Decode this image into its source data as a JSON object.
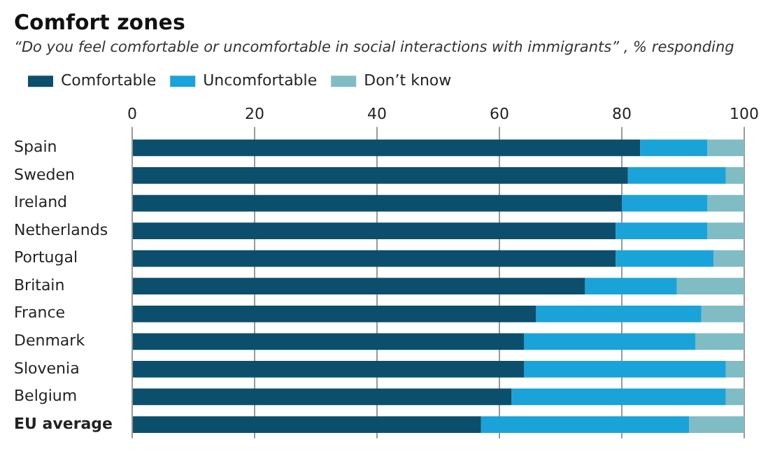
{
  "chart_data": {
    "type": "bar",
    "orientation": "horizontal",
    "stacked": true,
    "title": "Comfort zones",
    "subtitle": "“Do you feel comfortable or uncomfortable in social interactions with immigrants” , % responding",
    "categories": [
      "Spain",
      "Sweden",
      "Ireland",
      "Netherlands",
      "Portugal",
      "Britain",
      "France",
      "Denmark",
      "Slovenia",
      "Belgium",
      "EU average"
    ],
    "series": [
      {
        "name": "Comfortable",
        "color": "#0b4f6c",
        "values": [
          83,
          81,
          80,
          79,
          79,
          74,
          66,
          64,
          64,
          62,
          57
        ]
      },
      {
        "name": "Uncomfortable",
        "color": "#1aa3d9",
        "values": [
          11,
          16,
          14,
          15,
          16,
          15,
          27,
          28,
          33,
          35,
          34
        ]
      },
      {
        "name": "Don’t know",
        "color": "#7fbcc4",
        "values": [
          6,
          3,
          6,
          6,
          5,
          11,
          7,
          8,
          3,
          3,
          9
        ]
      }
    ],
    "xlim": [
      0,
      100
    ],
    "xticks": [
      0,
      20,
      40,
      60,
      80,
      100
    ],
    "grid": "x",
    "legend": "top left"
  }
}
